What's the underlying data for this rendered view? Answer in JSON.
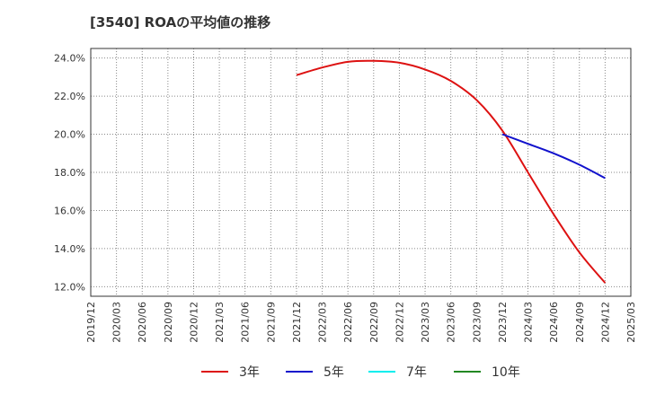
{
  "chart_data": {
    "type": "line",
    "title": "[3540]  ROAの平均値の推移",
    "xlabel": "",
    "ylabel": "",
    "ylim": [
      11.5,
      24.5
    ],
    "y_ticks": [
      12.0,
      14.0,
      16.0,
      18.0,
      20.0,
      22.0,
      24.0
    ],
    "y_tick_labels": [
      "12.0%",
      "14.0%",
      "16.0%",
      "18.0%",
      "20.0%",
      "22.0%",
      "24.0%"
    ],
    "x_tick_labels": [
      "2019/12",
      "2020/03",
      "2020/06",
      "2020/09",
      "2020/12",
      "2021/03",
      "2021/06",
      "2021/09",
      "2021/12",
      "2022/03",
      "2022/06",
      "2022/09",
      "2022/12",
      "2023/03",
      "2023/06",
      "2023/09",
      "2023/12",
      "2024/03",
      "2024/06",
      "2024/09",
      "2024/12",
      "2025/03"
    ],
    "grid": true,
    "legend_position": "bottom",
    "series": [
      {
        "name": "3年",
        "color": "#dd1111",
        "x": [
          "2021/12",
          "2022/03",
          "2022/06",
          "2022/09",
          "2022/12",
          "2023/03",
          "2023/06",
          "2023/09",
          "2023/12",
          "2024/03",
          "2024/06",
          "2024/09",
          "2024/12"
        ],
        "values": [
          23.1,
          23.5,
          23.8,
          23.85,
          23.75,
          23.4,
          22.8,
          21.8,
          20.2,
          18.0,
          15.8,
          13.8,
          12.2
        ]
      },
      {
        "name": "5年",
        "color": "#1111cc",
        "x": [
          "2023/12",
          "2024/03",
          "2024/06",
          "2024/09",
          "2024/12"
        ],
        "values": [
          20.0,
          19.5,
          19.0,
          18.4,
          17.7
        ]
      },
      {
        "name": "7年",
        "color": "#00eeee",
        "x": [],
        "values": []
      },
      {
        "name": "10年",
        "color": "#228822",
        "x": [],
        "values": []
      }
    ]
  }
}
